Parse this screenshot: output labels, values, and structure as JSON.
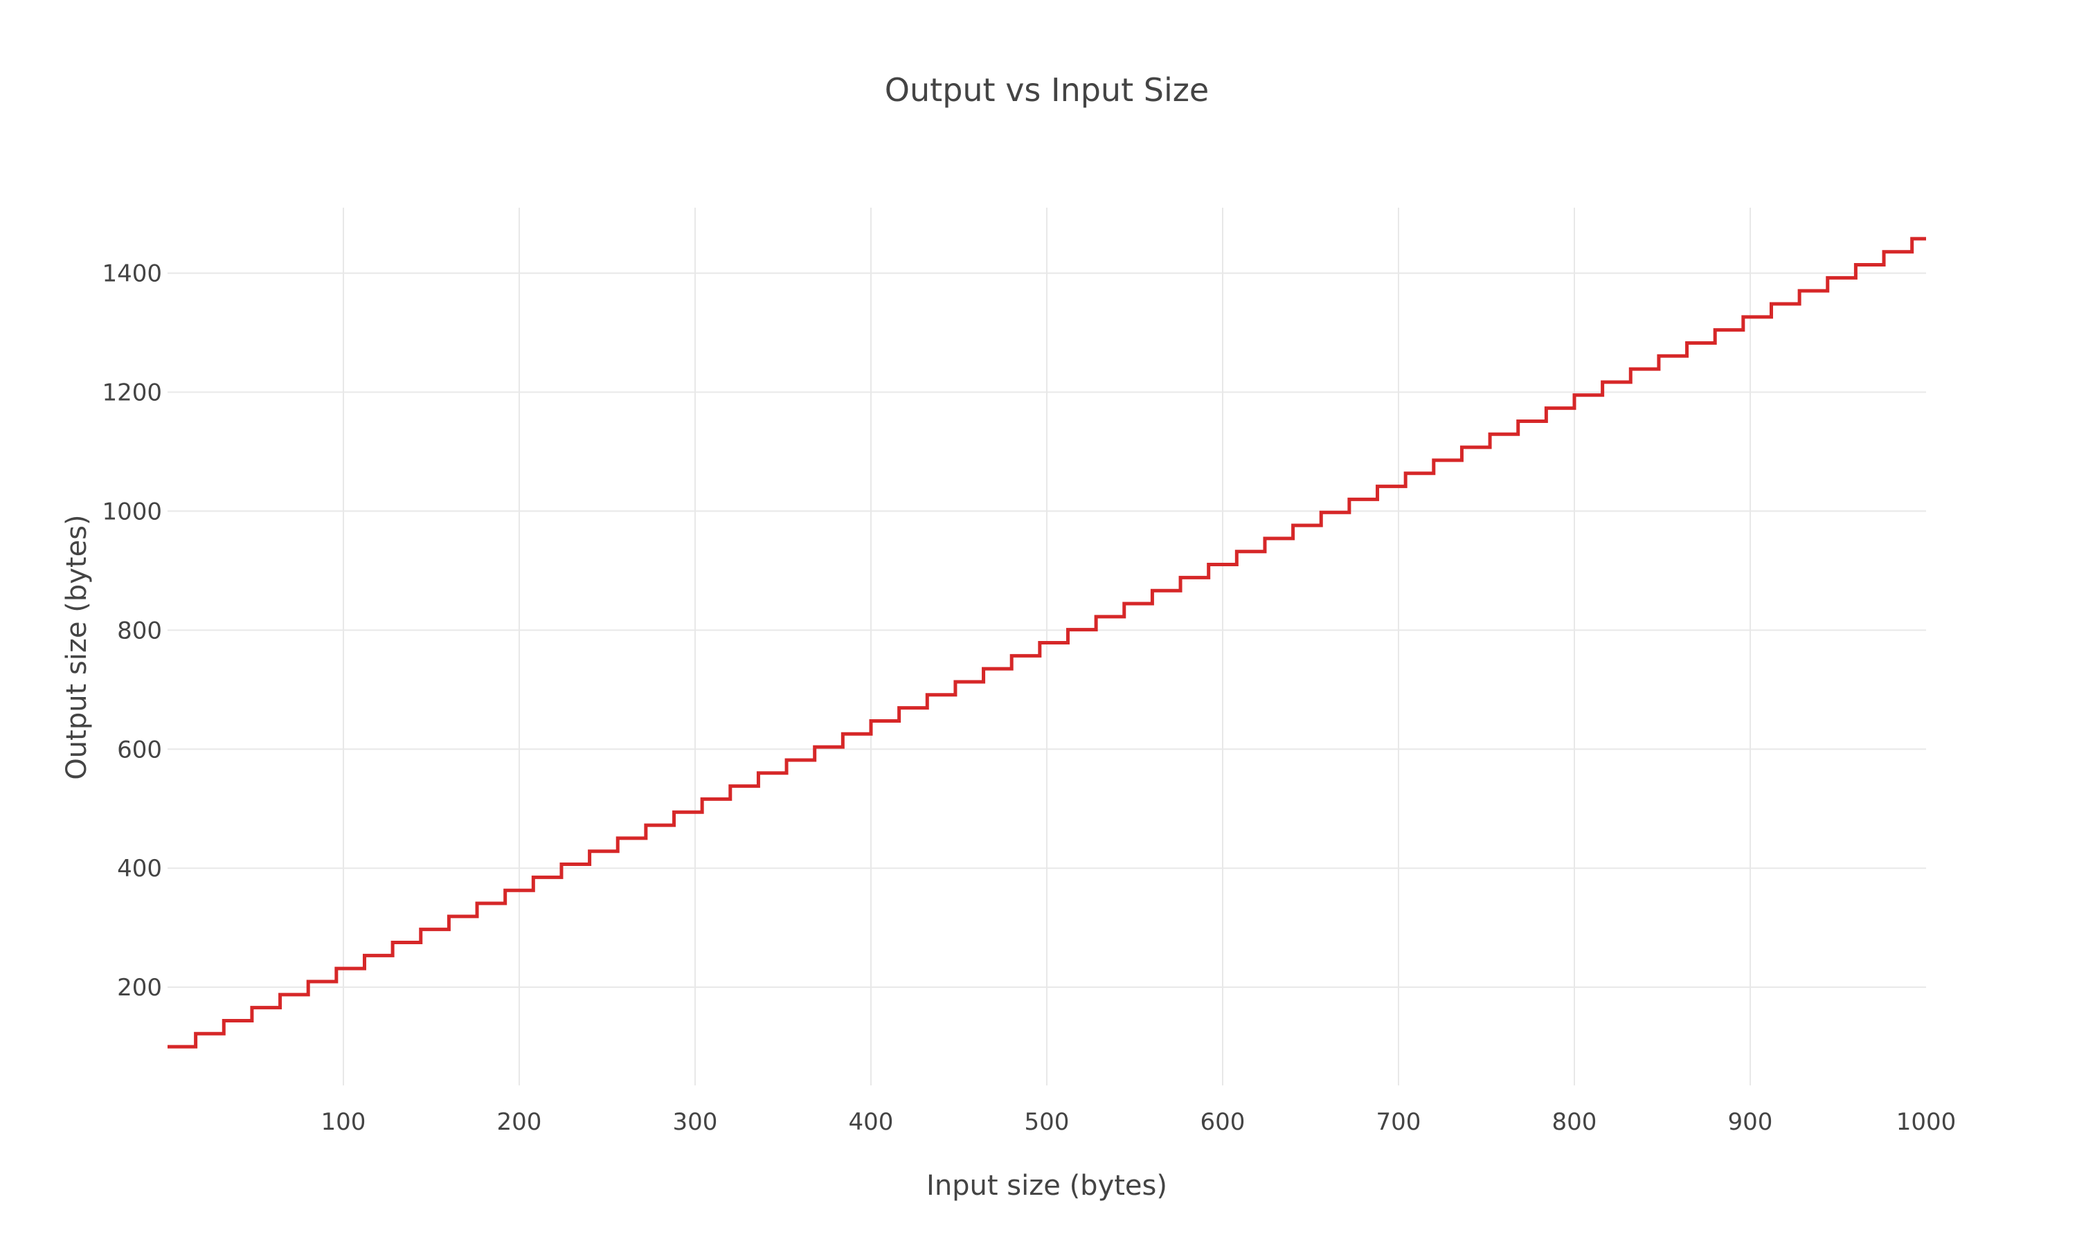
{
  "chart_data": {
    "type": "line",
    "title": "Output vs Input Size",
    "xlabel": "Input size (bytes)",
    "ylabel": "Output size (bytes)",
    "xlim": [
      0,
      1000
    ],
    "ylim": [
      35,
      1510
    ],
    "x_ticks": [
      100,
      200,
      300,
      400,
      500,
      600,
      700,
      800,
      900,
      1000
    ],
    "y_ticks": [
      200,
      400,
      600,
      800,
      1000,
      1200,
      1400
    ],
    "grid": true,
    "legend": "none",
    "line_shape": "step",
    "line_color": "#d62728",
    "series": [
      {
        "step_width": 16,
        "start_y": 100,
        "step_height": 21.9,
        "x_start": 0,
        "x_end": 1000
      }
    ]
  }
}
